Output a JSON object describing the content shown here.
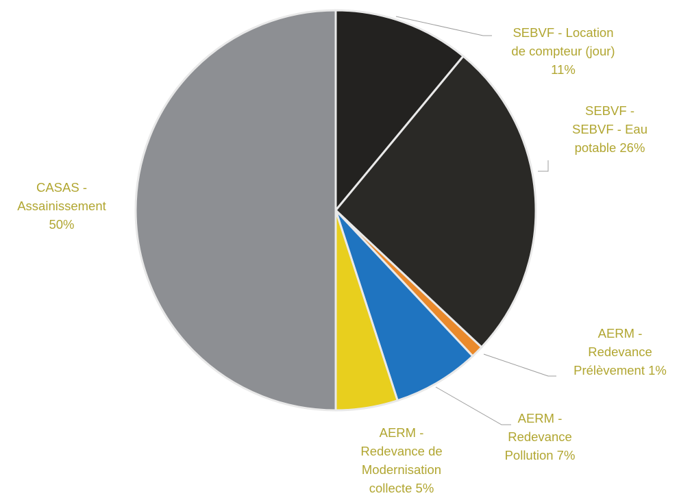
{
  "chart_data": {
    "type": "pie",
    "slices": [
      {
        "label_lines": [
          "SEBVF - Location",
          "de compteur (jour)",
          "11%"
        ],
        "value": 11,
        "color": "#232220"
      },
      {
        "label_lines": [
          "SEBVF -",
          "SEBVF - Eau",
          "potable 26%"
        ],
        "value": 26,
        "color": "#2a2926"
      },
      {
        "label_lines": [
          "AERM -",
          "Redevance",
          "Prélèvement  1%"
        ],
        "value": 1,
        "color": "#ea8a2c"
      },
      {
        "label_lines": [
          "AERM -",
          "Redevance",
          "Pollution 7%"
        ],
        "value": 7,
        "color": "#1f74c0"
      },
      {
        "label_lines": [
          "AERM -",
          "Redevance de",
          "Modernisation",
          "collecte 5%"
        ],
        "value": 5,
        "color": "#e8cf1e"
      },
      {
        "label_lines": [
          "CASAS -",
          "Assainissement",
          "50%"
        ],
        "value": 50,
        "color": "#8d8f93"
      }
    ],
    "label_color": "#b1a631",
    "start_angle": "12 o'clock",
    "direction": "clockwise",
    "legend": "none"
  }
}
